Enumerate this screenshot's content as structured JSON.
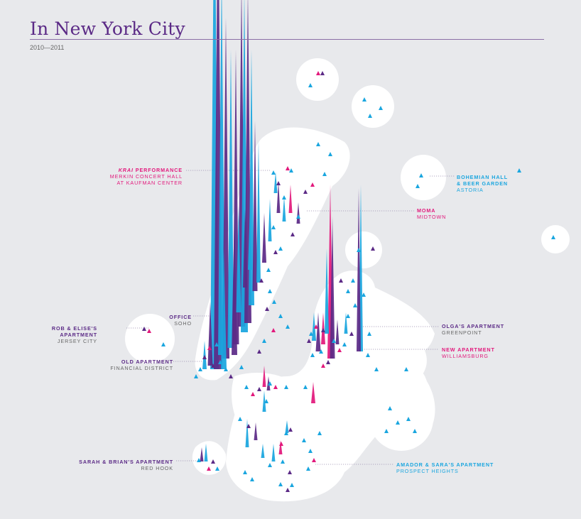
{
  "title": "In New York City",
  "years": "2010—2011",
  "colors": {
    "background": "#e8e9ec",
    "land": "#ffffff",
    "purple": "#5b2a86",
    "blue": "#1aa6df",
    "pink": "#e2197c",
    "leader": "#9a8fb0"
  },
  "labels": {
    "krai": {
      "em": "KRAI",
      "rest": " PERFORMANCE",
      "sub1": "MERKIN CONCERT HALL",
      "sub2": "AT KAUFMAN CENTER"
    },
    "moma": {
      "name": "MOMA",
      "sub": "MIDTOWN"
    },
    "bohemian": {
      "name1": "BOHEMIAN HALL",
      "name2": "& BEER GARDEN",
      "sub": "ASTORIA"
    },
    "office": {
      "name": "OFFICE",
      "sub": "SOHO"
    },
    "rob": {
      "name1": "ROB & ELISE'S",
      "name2": "APARTMENT",
      "sub": "JERSEY CITY"
    },
    "old_apartment": {
      "name": "OLD APARTMENT",
      "sub": "FINANCIAL DISTRICT"
    },
    "olga": {
      "name": "OLGA'S APARTMENT",
      "sub": "GREENPOINT"
    },
    "new_apartment": {
      "name": "NEW APARTMENT",
      "sub": "WILLIAMSBURG"
    },
    "sarah": {
      "name": "SARAH & BRIAN'S APARTMENT",
      "sub": "RED HOOK"
    },
    "amador": {
      "name": "AMADOR & SARA'S APARTMENT",
      "sub": "PROSPECT HEIGHTS"
    }
  }
}
